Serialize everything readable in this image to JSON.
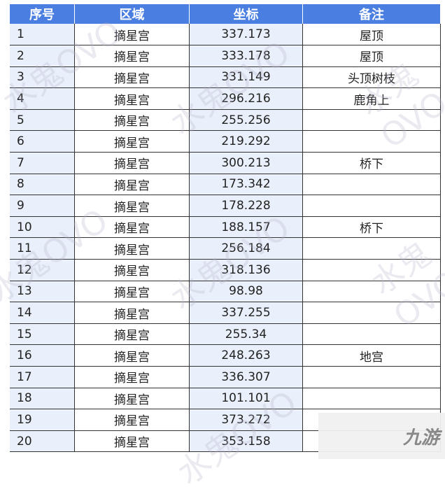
{
  "headers": [
    "序号",
    "区域",
    "坐标",
    "备注"
  ],
  "rows": [
    [
      "1",
      "摘星宫",
      "337.173",
      "屋顶"
    ],
    [
      "2",
      "摘星宫",
      "333.178",
      "屋顶"
    ],
    [
      "3",
      "摘星宫",
      "331.149",
      "头顶树枝"
    ],
    [
      "4",
      "摘星宫",
      "296.216",
      "鹿角上"
    ],
    [
      "5",
      "摘星宫",
      "255.256",
      ""
    ],
    [
      "6",
      "摘星宫",
      "219.292",
      ""
    ],
    [
      "7",
      "摘星宫",
      "300.213",
      "桥下"
    ],
    [
      "8",
      "摘星宫",
      "173.342",
      ""
    ],
    [
      "9",
      "摘星宫",
      "178.228",
      ""
    ],
    [
      "10",
      "摘星宫",
      "188.157",
      "桥下"
    ],
    [
      "11",
      "摘星宫",
      "256.184",
      ""
    ],
    [
      "12",
      "摘星宫",
      "318.136",
      ""
    ],
    [
      "13",
      "摘星宫",
      "98.98",
      ""
    ],
    [
      "14",
      "摘星宫",
      "337.255",
      ""
    ],
    [
      "15",
      "摘星宫",
      "255.34",
      ""
    ],
    [
      "16",
      "摘星宫",
      "248.263",
      "地宫"
    ],
    [
      "17",
      "摘星宫",
      "336.307",
      ""
    ],
    [
      "18",
      "摘星宫",
      "101.101",
      ""
    ],
    [
      "19",
      "摘星宫",
      "373.272",
      ""
    ],
    [
      "20",
      "摘星宫",
      "353.158",
      ""
    ]
  ],
  "watermark": "水鬼OVO",
  "logo": "九游",
  "colors": {
    "header": "#4a7ee0",
    "shaded_column": "#eaf0fb"
  }
}
